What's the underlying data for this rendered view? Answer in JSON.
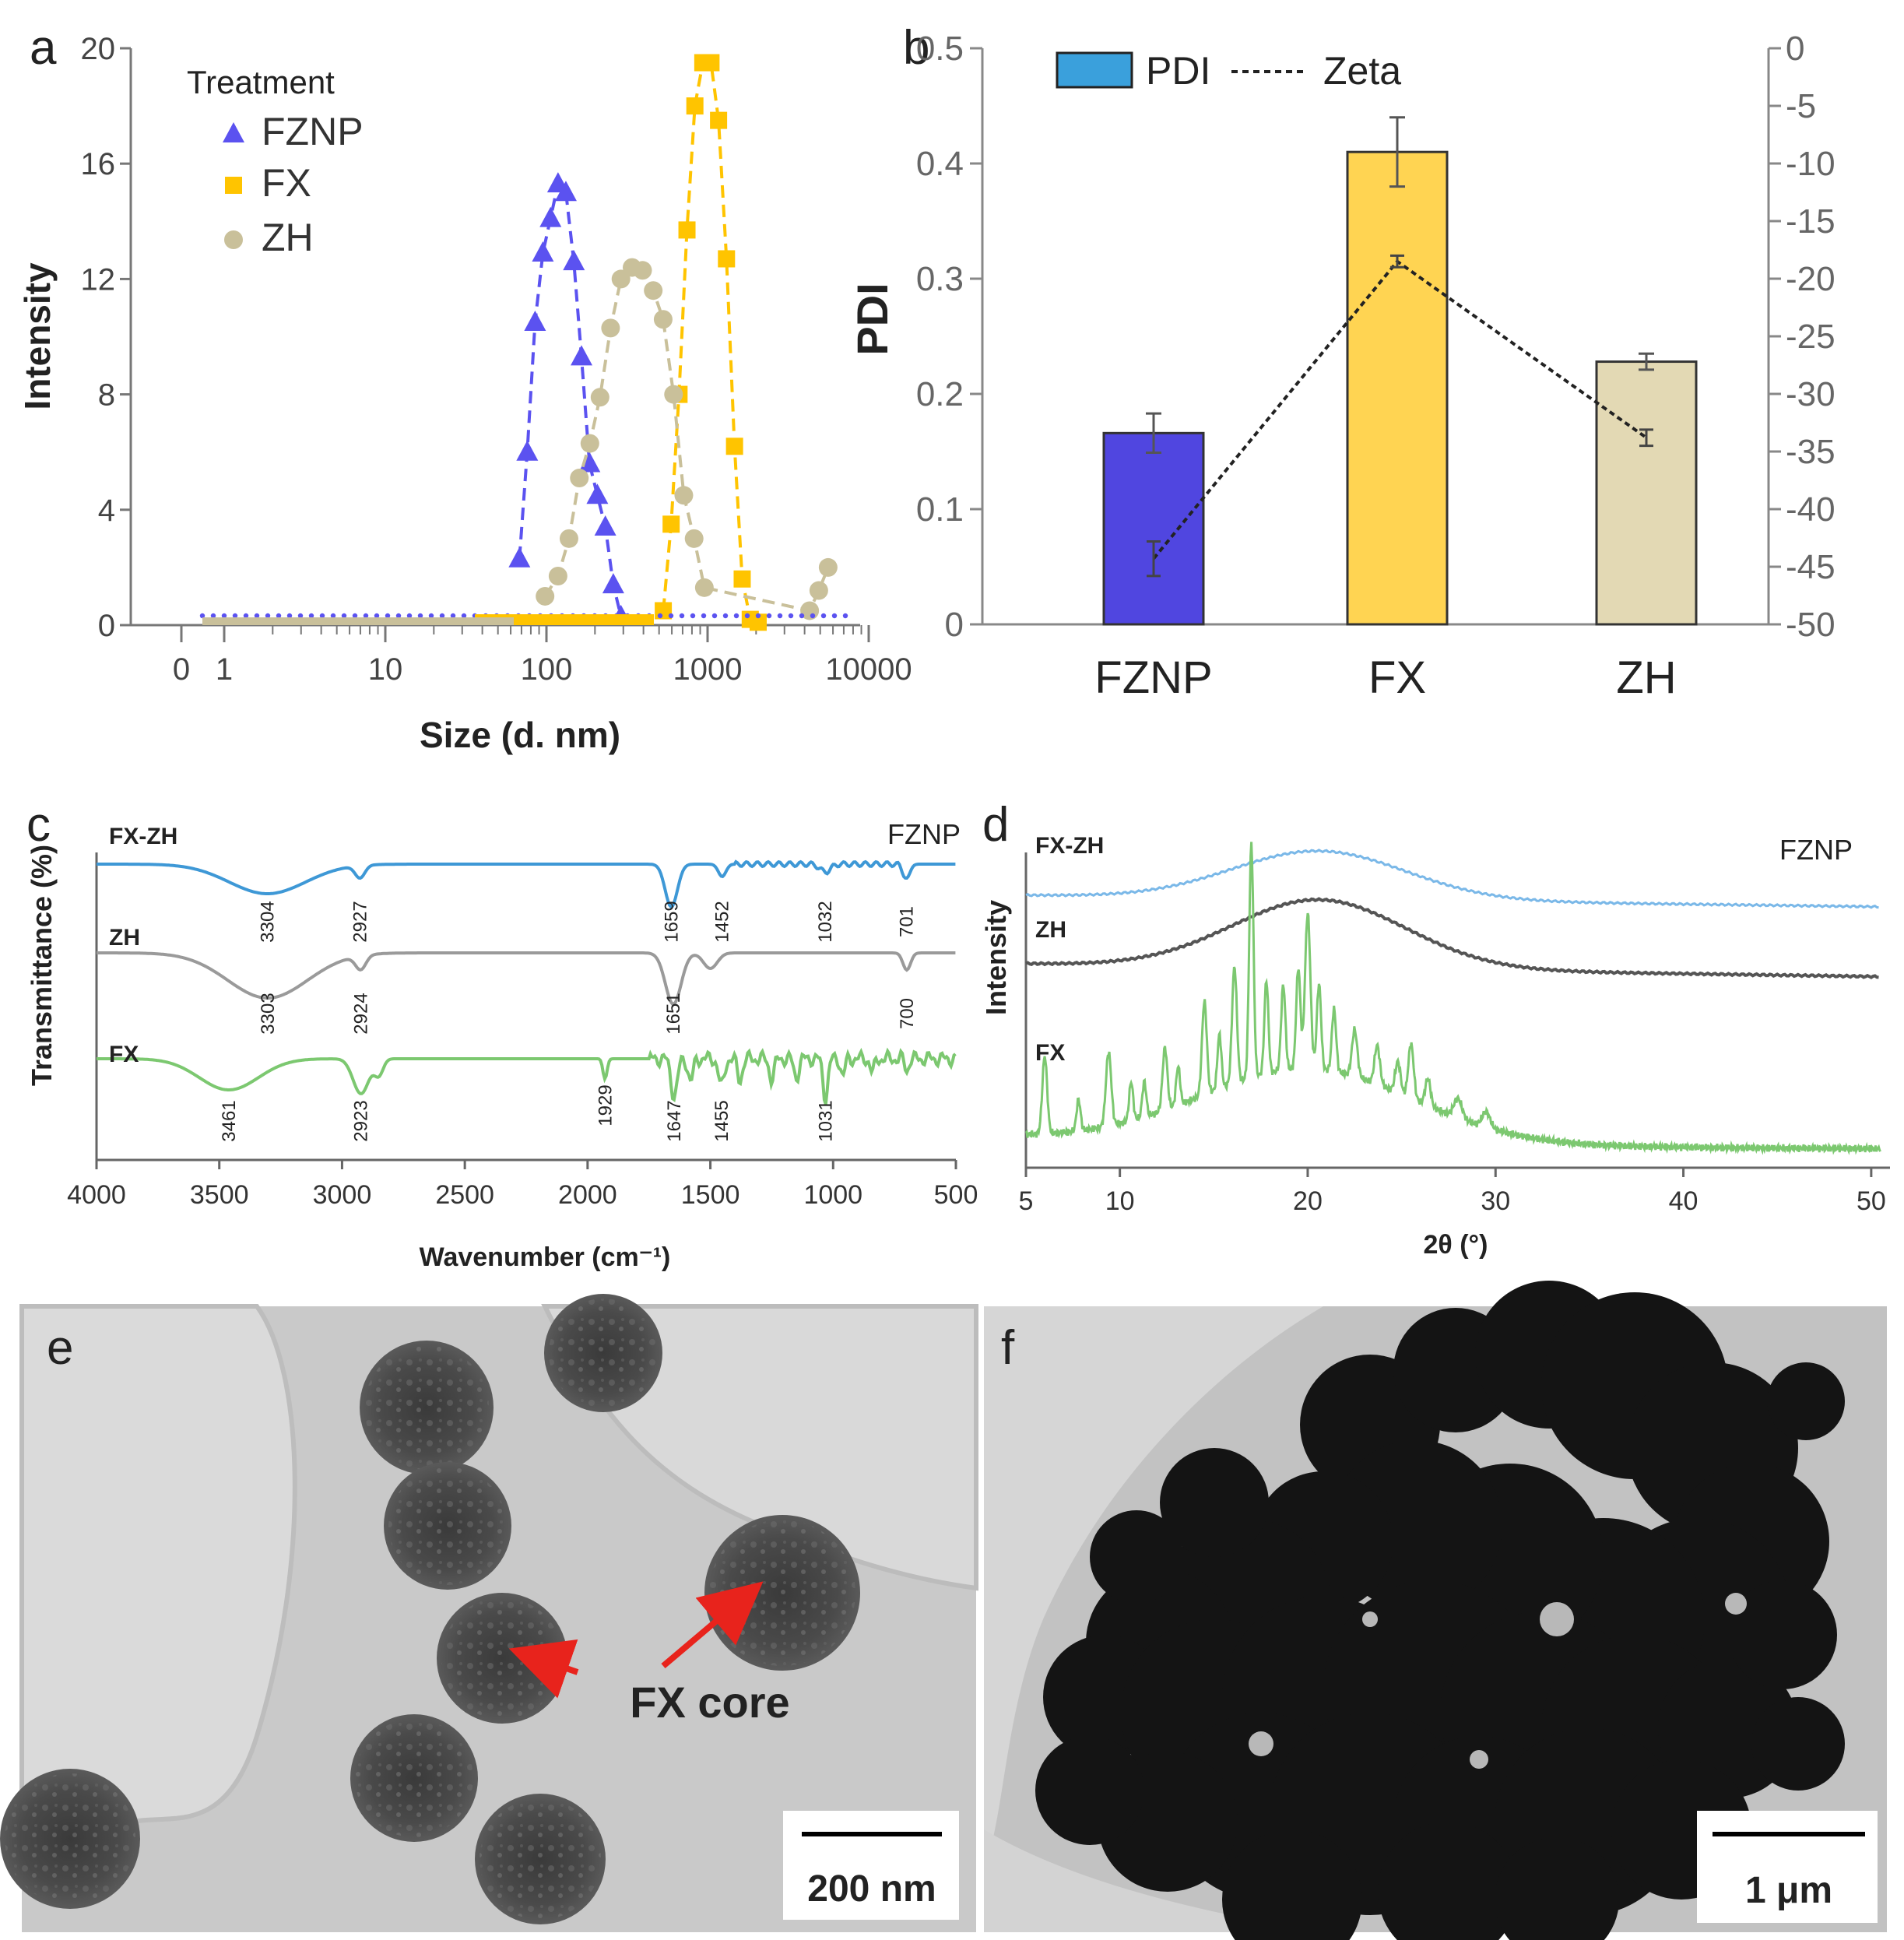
{
  "panels": {
    "a": {
      "letter": "a"
    },
    "b": {
      "letter": "b"
    },
    "c": {
      "letter": "c"
    },
    "d": {
      "letter": "d"
    },
    "e": {
      "letter": "e",
      "annotation": "FX core",
      "scale_bar": "200 nm"
    },
    "f": {
      "letter": "f",
      "scale_bar": "1 μm"
    }
  },
  "colors": {
    "fznp": "#5b52f0",
    "fx": "#ffc400",
    "zh": "#c9c09a",
    "bar_fznp": "#5046e0",
    "bar_fx": "#ffd452",
    "bar_zh": "#e3d9b4",
    "ftir_fxzh": "#3e98d6",
    "ftir_zh": "#9a9a9a",
    "ftir_fx": "#7cc870",
    "xrd_fxzh": "#7ab8e8",
    "xrd_zh": "#555555",
    "xrd_fx": "#7cc870",
    "arrow": "#e8231c"
  },
  "chart_data": [
    {
      "id": "a",
      "type": "line",
      "xlabel": "Size (d. nm)",
      "ylabel": "Intensity",
      "x_scale": "log",
      "xticks": [
        "0",
        "1",
        "10",
        "100",
        "1000",
        "10000"
      ],
      "yticks": [
        "0",
        "4",
        "8",
        "12",
        "16",
        "20"
      ],
      "ylim": [
        0,
        20
      ],
      "legend": {
        "title": "Treatment",
        "position": "top-left"
      },
      "series": [
        {
          "name": "FZNP",
          "marker": "triangle",
          "x": [
            68,
            76,
            85,
            95,
            106,
            118,
            132,
            148,
            165,
            185,
            207,
            232,
            260,
            290
          ],
          "y": [
            2.3,
            6.0,
            10.5,
            12.9,
            14.1,
            15.3,
            15.0,
            12.6,
            9.3,
            5.6,
            4.5,
            3.4,
            1.4,
            0.3
          ]
        },
        {
          "name": "FX",
          "marker": "square",
          "x": [
            531,
            594,
            665,
            745,
            834,
            934,
            1050,
            1170,
            1310,
            1470,
            1640,
            1840,
            2060
          ],
          "y": [
            0.5,
            3.5,
            8.0,
            13.7,
            18.0,
            19.5,
            19.5,
            17.5,
            12.7,
            6.2,
            1.6,
            0.2,
            0.1
          ]
        },
        {
          "name": "ZH",
          "marker": "circle",
          "x": [
            98,
            118,
            138,
            160,
            186,
            215,
            250,
            290,
            340,
            395,
            460,
            530,
            615,
            712,
            825,
            955,
            4300,
            4900,
            5600
          ],
          "y": [
            1.0,
            1.7,
            3.0,
            5.1,
            6.3,
            7.9,
            10.3,
            12.0,
            12.4,
            12.3,
            11.6,
            10.6,
            8.0,
            4.5,
            3.0,
            1.3,
            0.5,
            1.2,
            2.0
          ]
        }
      ]
    },
    {
      "id": "b",
      "type": "bar",
      "ylabel": "PDI",
      "categories": [
        "FZNP",
        "FX",
        "ZH"
      ],
      "ylim": [
        0,
        0.5
      ],
      "yticks": [
        "0",
        "0.1",
        "0.2",
        "0.3",
        "0.4",
        "0.5"
      ],
      "y2lim": [
        -50,
        0
      ],
      "y2ticks": [
        "-50",
        "-45",
        "-40",
        "-35",
        "-30",
        "-25",
        "-20",
        "-15",
        "-10",
        "-5",
        "0"
      ],
      "legend": {
        "position": "top-left",
        "entries": [
          "PDI",
          "Zeta"
        ]
      },
      "series": [
        {
          "name": "PDI",
          "axis": "left",
          "values": [
            0.166,
            0.41,
            0.228
          ],
          "errors": [
            0.017,
            0.03,
            0.007
          ]
        },
        {
          "name": "Zeta",
          "axis": "right",
          "values": [
            -44.3,
            -18.5,
            -33.8
          ],
          "errors": [
            1.5,
            0.5,
            0.7
          ]
        }
      ]
    },
    {
      "id": "c",
      "type": "line",
      "xlabel": "Wavenumber (cm⁻¹)",
      "ylabel": "Transmittance (%)",
      "xlim": [
        4000,
        500
      ],
      "xticks": [
        "4000",
        "3500",
        "3000",
        "2500",
        "2000",
        "1500",
        "1000",
        "500"
      ],
      "corner_label": "FZNP",
      "series": [
        {
          "name": "FX-ZH",
          "peaks": [
            "3304",
            "2927",
            "1659",
            "1452",
            "1032",
            "701"
          ]
        },
        {
          "name": "ZH",
          "peaks": [
            "3303",
            "2924",
            "1651",
            "700"
          ]
        },
        {
          "name": "FX",
          "peaks": [
            "3461",
            "2923",
            "1929",
            "1647",
            "1455",
            "1031"
          ]
        }
      ]
    },
    {
      "id": "d",
      "type": "line",
      "xlabel": "2θ (°)",
      "ylabel": "Intensity",
      "xlim": [
        5,
        51
      ],
      "xticks": [
        "5",
        "10",
        "20",
        "30",
        "40",
        "50"
      ],
      "corner_label": "FZNP",
      "series": [
        {
          "name": "FX-ZH"
        },
        {
          "name": "ZH"
        },
        {
          "name": "FX"
        }
      ]
    }
  ]
}
